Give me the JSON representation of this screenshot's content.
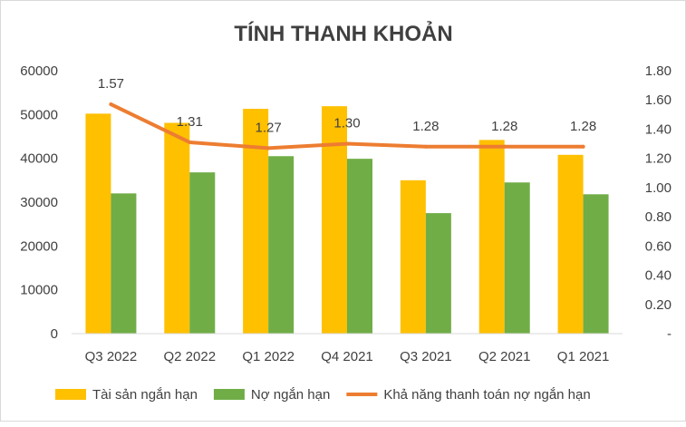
{
  "chart_data": {
    "type": "bar",
    "title": "TÍNH THANH KHOẢN",
    "categories": [
      "Q3 2022",
      "Q2 2022",
      "Q1 2022",
      "Q4 2021",
      "Q3 2021",
      "Q2 2021",
      "Q1 2021"
    ],
    "series": [
      {
        "name": "Tài sản ngắn hạn",
        "kind": "bar",
        "axis": "left",
        "color": "#FFC000",
        "values": [
          50200,
          48100,
          51300,
          51900,
          35000,
          44200,
          40800
        ]
      },
      {
        "name": "Nợ ngắn hạn",
        "kind": "bar",
        "axis": "left",
        "color": "#70AD47",
        "values": [
          32000,
          36800,
          40500,
          39900,
          27500,
          34500,
          31800
        ]
      },
      {
        "name": "Khả năng thanh toán nợ ngắn hạn",
        "kind": "line",
        "axis": "right",
        "color": "#ED7D31",
        "values": [
          1.57,
          1.31,
          1.27,
          1.3,
          1.28,
          1.28,
          1.28
        ],
        "labels": [
          "1.57",
          "1.31",
          "1.27",
          "1.30",
          "1.28",
          "1.28",
          "1.28"
        ]
      }
    ],
    "y_left": {
      "min": 0,
      "max": 60000,
      "ticks": [
        "0",
        "10000",
        "20000",
        "30000",
        "40000",
        "50000",
        "60000"
      ]
    },
    "y_right": {
      "min": 0,
      "max": 1.8,
      "ticks": [
        "-",
        "0.20",
        "0.40",
        "0.60",
        "0.80",
        "1.00",
        "1.20",
        "1.40",
        "1.60",
        "1.80"
      ]
    },
    "grid": false,
    "legend_position": "bottom"
  }
}
